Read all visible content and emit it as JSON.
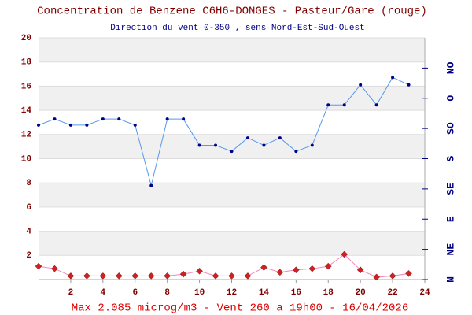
{
  "chart_data": {
    "type": "line",
    "title": "Concentration de Benzene C6H6-DONGES - Pasteur/Gare (rouge)",
    "subtitle": "Direction du vent 0-350 , sens Nord-Est-Sud-Ouest",
    "footer": "Max 2.085 microg/m3 - Vent 260  a 19h00 - 16/04/2026",
    "x": [
      0,
      1,
      2,
      3,
      4,
      5,
      6,
      7,
      8,
      9,
      10,
      11,
      12,
      13,
      14,
      15,
      16,
      17,
      18,
      19,
      20,
      21,
      22,
      23
    ],
    "series": [
      {
        "name": "Direction du vent",
        "color": "#5599ee",
        "marker_color": "#000088",
        "marker": "circle",
        "axis": "y2",
        "values": [
          230,
          239,
          230,
          230,
          239,
          239,
          230,
          140,
          239,
          239,
          200,
          200,
          191,
          211,
          200,
          211,
          191,
          200,
          260,
          260,
          290,
          260,
          301,
          290
        ]
      },
      {
        "name": "Benzene",
        "color": "#ee88bb",
        "marker_color": "#cc2222",
        "marker": "diamond",
        "values": [
          1.1,
          0.9,
          0.3,
          0.3,
          0.3,
          0.3,
          0.3,
          0.3,
          0.3,
          0.45,
          0.7,
          0.3,
          0.3,
          0.3,
          1.0,
          0.6,
          0.8,
          0.9,
          1.1,
          2.085,
          0.8,
          0.2,
          0.3,
          0.5
        ]
      }
    ],
    "xlim": [
      0,
      24
    ],
    "xticks": [
      2,
      4,
      6,
      8,
      10,
      12,
      14,
      16,
      18,
      20,
      22,
      24
    ],
    "ylim": [
      0,
      20
    ],
    "yticks": [
      2,
      4,
      6,
      8,
      10,
      12,
      14,
      16,
      18,
      20
    ],
    "y2lim": [
      0,
      360
    ],
    "y2ticks": [
      {
        "value": 0,
        "label": "N"
      },
      {
        "value": 45,
        "label": "NE"
      },
      {
        "value": 90,
        "label": "E"
      },
      {
        "value": 135,
        "label": "SE"
      },
      {
        "value": 180,
        "label": "S"
      },
      {
        "value": 225,
        "label": "SO"
      },
      {
        "value": 270,
        "label": "O"
      },
      {
        "value": 315,
        "label": "NO"
      }
    ],
    "grid": true
  }
}
